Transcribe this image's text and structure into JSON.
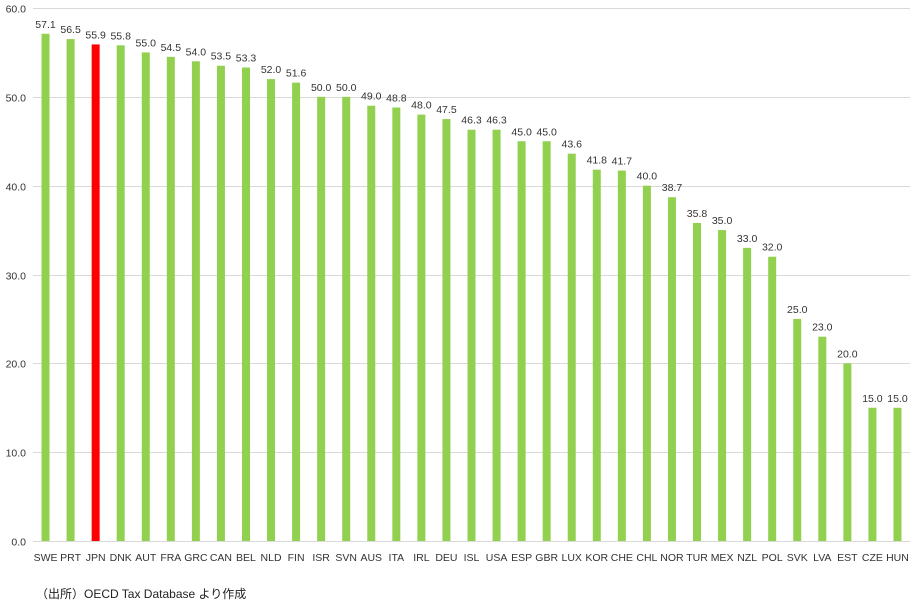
{
  "chart_data": {
    "type": "bar",
    "categories": [
      "SWE",
      "PRT",
      "JPN",
      "DNK",
      "AUT",
      "FRA",
      "GRC",
      "CAN",
      "BEL",
      "NLD",
      "FIN",
      "ISR",
      "SVN",
      "AUS",
      "ITA",
      "IRL",
      "DEU",
      "ISL",
      "USA",
      "ESP",
      "GBR",
      "LUX",
      "KOR",
      "CHE",
      "CHL",
      "NOR",
      "TUR",
      "MEX",
      "NZL",
      "POL",
      "SVK",
      "LVA",
      "EST",
      "CZE",
      "HUN"
    ],
    "values": [
      57.1,
      56.5,
      55.9,
      55.8,
      55.0,
      54.5,
      54.0,
      53.5,
      53.3,
      52.0,
      51.6,
      50.0,
      50.0,
      49.0,
      48.8,
      48.0,
      47.5,
      46.3,
      46.3,
      45.0,
      45.0,
      43.6,
      41.8,
      41.7,
      40.0,
      38.7,
      35.8,
      35.0,
      33.0,
      32.0,
      25.0,
      23.0,
      20.0,
      15.0,
      15.0
    ],
    "value_labels": [
      "57.1",
      "56.5",
      "55.9",
      "55.8",
      "55.0",
      "54.5",
      "54.0",
      "53.5",
      "53.3",
      "52.0",
      "51.6",
      "50.0",
      "50.0",
      "49.0",
      "48.8",
      "48.0",
      "47.5",
      "46.3",
      "46.3",
      "45.0",
      "45.0",
      "43.6",
      "41.8",
      "41.7",
      "40.0",
      "38.7",
      "35.8",
      "35.0",
      "33.0",
      "32.0",
      "25.0",
      "23.0",
      "20.0",
      "15.0",
      "15.0"
    ],
    "highlight": "JPN",
    "ylim": [
      0,
      60
    ],
    "yticks": [
      "0.0",
      "10.0",
      "20.0",
      "30.0",
      "40.0",
      "50.0",
      "60.0"
    ],
    "ytick_values": [
      0,
      10,
      20,
      30,
      40,
      50,
      60
    ],
    "grid": true,
    "legend": "none",
    "title": "",
    "xlabel": "",
    "ylabel": ""
  },
  "colors": {
    "bar": "#92d050",
    "highlight_bar": "#ff0000",
    "grid": "#d9d9d9",
    "text": "#333333"
  },
  "source_note": "（出所）OECD  Tax Database より作成"
}
